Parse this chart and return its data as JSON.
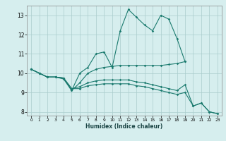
{
  "xlabel": "Humidex (Indice chaleur)",
  "background_color": "#d6eeee",
  "grid_color": "#aacccc",
  "line_color": "#1a7a6e",
  "lines": [
    {
      "x": [
        0,
        1,
        2,
        3,
        4,
        5,
        6,
        7,
        8,
        9,
        10,
        11,
        12,
        13,
        14,
        15,
        16,
        17,
        18,
        19
      ],
      "y": [
        10.2,
        10.0,
        9.8,
        9.8,
        9.7,
        9.1,
        10.0,
        10.3,
        11.0,
        11.1,
        10.3,
        12.2,
        13.3,
        12.9,
        12.5,
        12.2,
        13.0,
        12.8,
        11.8,
        10.6
      ]
    },
    {
      "x": [
        0,
        1,
        2,
        3,
        4,
        5,
        6,
        7,
        8,
        9,
        10,
        11,
        12,
        13,
        14,
        15,
        16,
        17,
        18,
        19
      ],
      "y": [
        10.2,
        10.0,
        9.8,
        9.8,
        9.75,
        9.1,
        9.5,
        10.0,
        10.2,
        10.3,
        10.35,
        10.4,
        10.4,
        10.4,
        10.4,
        10.4,
        10.4,
        10.45,
        10.5,
        10.6
      ]
    },
    {
      "x": [
        0,
        1,
        2,
        3,
        4,
        5,
        6,
        7,
        8,
        9,
        10,
        11,
        12,
        13,
        14,
        15,
        16,
        17,
        18,
        19,
        20,
        21,
        22,
        23
      ],
      "y": [
        10.2,
        10.0,
        9.8,
        9.8,
        9.75,
        9.2,
        9.3,
        9.5,
        9.6,
        9.65,
        9.65,
        9.65,
        9.65,
        9.55,
        9.5,
        9.4,
        9.3,
        9.2,
        9.1,
        9.4,
        8.3,
        8.45,
        8.0,
        7.9
      ]
    },
    {
      "x": [
        0,
        1,
        2,
        3,
        4,
        5,
        6,
        7,
        8,
        9,
        10,
        11,
        12,
        13,
        14,
        15,
        16,
        17,
        18,
        19,
        20,
        21,
        22,
        23
      ],
      "y": [
        10.2,
        10.0,
        9.8,
        9.8,
        9.75,
        9.2,
        9.2,
        9.35,
        9.4,
        9.45,
        9.45,
        9.45,
        9.45,
        9.35,
        9.3,
        9.2,
        9.1,
        9.0,
        8.9,
        9.0,
        8.3,
        8.45,
        8.0,
        7.9
      ]
    }
  ],
  "xlim": [
    -0.5,
    23.5
  ],
  "ylim": [
    7.8,
    13.5
  ],
  "yticks": [
    8,
    9,
    10,
    11,
    12,
    13
  ],
  "xticks": [
    0,
    1,
    2,
    3,
    4,
    5,
    6,
    7,
    8,
    9,
    10,
    11,
    12,
    13,
    14,
    15,
    16,
    17,
    18,
    19,
    20,
    21,
    22,
    23
  ]
}
